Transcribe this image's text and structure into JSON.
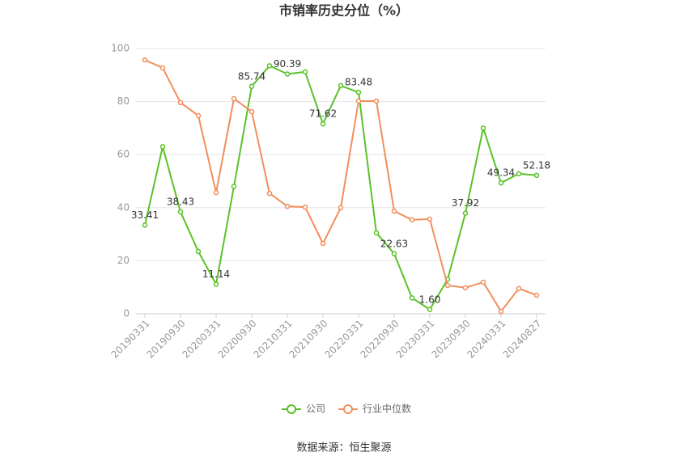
{
  "chart_data": {
    "type": "line",
    "title": "市销率历史分位（%）",
    "categories": [
      "20190331",
      null,
      "20190930",
      null,
      "20200331",
      null,
      "20200930",
      null,
      "20210331",
      null,
      "20210930",
      null,
      "20220331",
      null,
      "20220930",
      null,
      "20230331",
      null,
      "20230930",
      null,
      "20240331",
      null,
      "20240827"
    ],
    "series": [
      {
        "name": "公司",
        "color": "#5ac229",
        "values": [
          33.41,
          63,
          38.43,
          23.5,
          11.14,
          48,
          85.74,
          93.5,
          90.39,
          91.2,
          71.62,
          86,
          83.48,
          30.5,
          22.63,
          6,
          1.6,
          13,
          37.92,
          70,
          49.34,
          52.8,
          52.18
        ],
        "value_labels": [
          "33.41",
          null,
          "38.43",
          null,
          "11.14",
          null,
          "85.74",
          null,
          "90.39",
          null,
          "71.62",
          null,
          "83.48",
          null,
          "22.63",
          null,
          "1.60",
          null,
          "37.92",
          null,
          "49.34",
          null,
          "52.18"
        ]
      },
      {
        "name": "行业中位数",
        "color": "#f28e5c",
        "values": [
          95.7,
          92.7,
          79.6,
          74.7,
          45.7,
          81.1,
          76.2,
          45.4,
          40.5,
          40.2,
          26.5,
          40,
          80.2,
          80.2,
          38.7,
          35.4,
          35.7,
          10.7,
          9.8,
          11.9,
          0.9,
          9.5,
          7
        ]
      }
    ],
    "ylim": [
      0,
      100
    ],
    "yticks": [
      0,
      20,
      40,
      60,
      80,
      100
    ],
    "grid": true,
    "legend": "bottom",
    "source": "数据来源：恒生聚源"
  }
}
